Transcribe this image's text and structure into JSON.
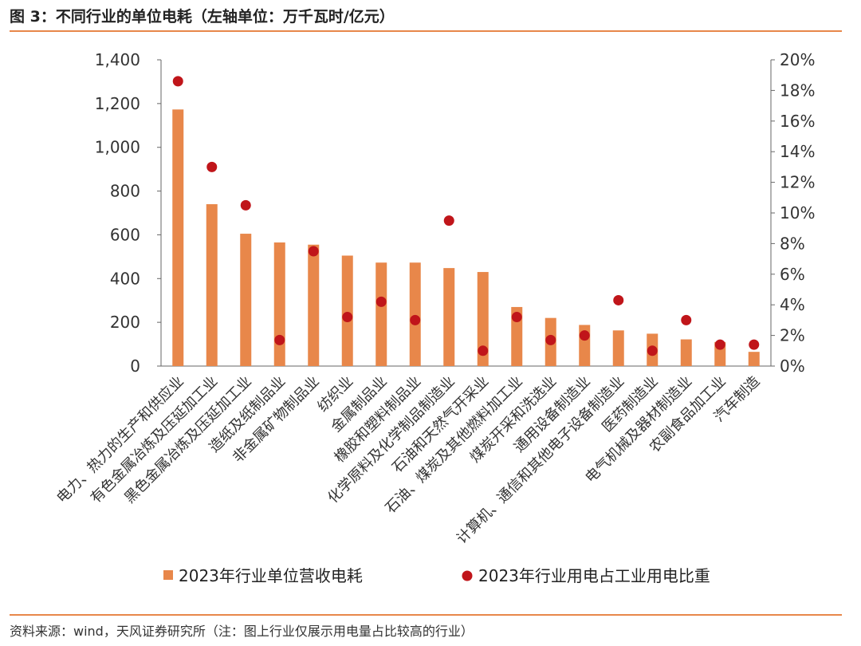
{
  "title": "图 3：不同行业的单位电耗（左轴单位：万千瓦时/亿元）",
  "source": "资料来源：wind，天风证券研究所（注：图上行业仅展示用电量占比较高的行业）",
  "colors": {
    "bar": "#E8874A",
    "dot": "#C0151A",
    "rule": "#E8874A",
    "axis": "#666666"
  },
  "chart_data": {
    "type": "bar",
    "categories": [
      "电力、热力的生产和供应业",
      "有色金属冶炼及压延加工业",
      "黑色金属冶炼及压延加工业",
      "造纸及纸制品业",
      "非金属矿物制品业",
      "纺织业",
      "金属制品业",
      "橡胶和塑料制品业",
      "化学原料及化学制品制造业",
      "石油和天然气开采业",
      "石油、煤炭及其他燃料加工业",
      "煤炭开采和洗选业",
      "通用设备制造业",
      "计算机、通信和其他电子设备制造业",
      "医药制造业",
      "电气机械及器材制造业",
      "农副食品加工业",
      "汽车制造"
    ],
    "series": [
      {
        "name": "2023年行业单位营收电耗",
        "type": "bar",
        "axis": "left",
        "values": [
          1173,
          740,
          605,
          565,
          555,
          505,
          473,
          473,
          448,
          430,
          270,
          220,
          188,
          163,
          148,
          122,
          110,
          65
        ]
      },
      {
        "name": "2023年行业用电占工业用电比重",
        "type": "scatter",
        "axis": "right",
        "values": [
          18.6,
          13.0,
          10.5,
          1.7,
          7.5,
          3.2,
          4.2,
          3.0,
          9.5,
          1.0,
          3.2,
          1.7,
          2.0,
          4.3,
          1.0,
          3.0,
          1.4,
          1.4
        ]
      }
    ],
    "yleft": {
      "min": 0,
      "max": 1400,
      "ticks": [
        "0",
        "200",
        "400",
        "600",
        "800",
        "1,000",
        "1,200",
        "1,400"
      ]
    },
    "yright": {
      "min": 0,
      "max": 20,
      "ticks": [
        "0%",
        "2%",
        "4%",
        "6%",
        "8%",
        "10%",
        "12%",
        "14%",
        "16%",
        "18%",
        "20%"
      ]
    },
    "legend": [
      "2023年行业单位营收电耗",
      "2023年行业用电占工业用电比重"
    ],
    "legend_position": "bottom"
  }
}
